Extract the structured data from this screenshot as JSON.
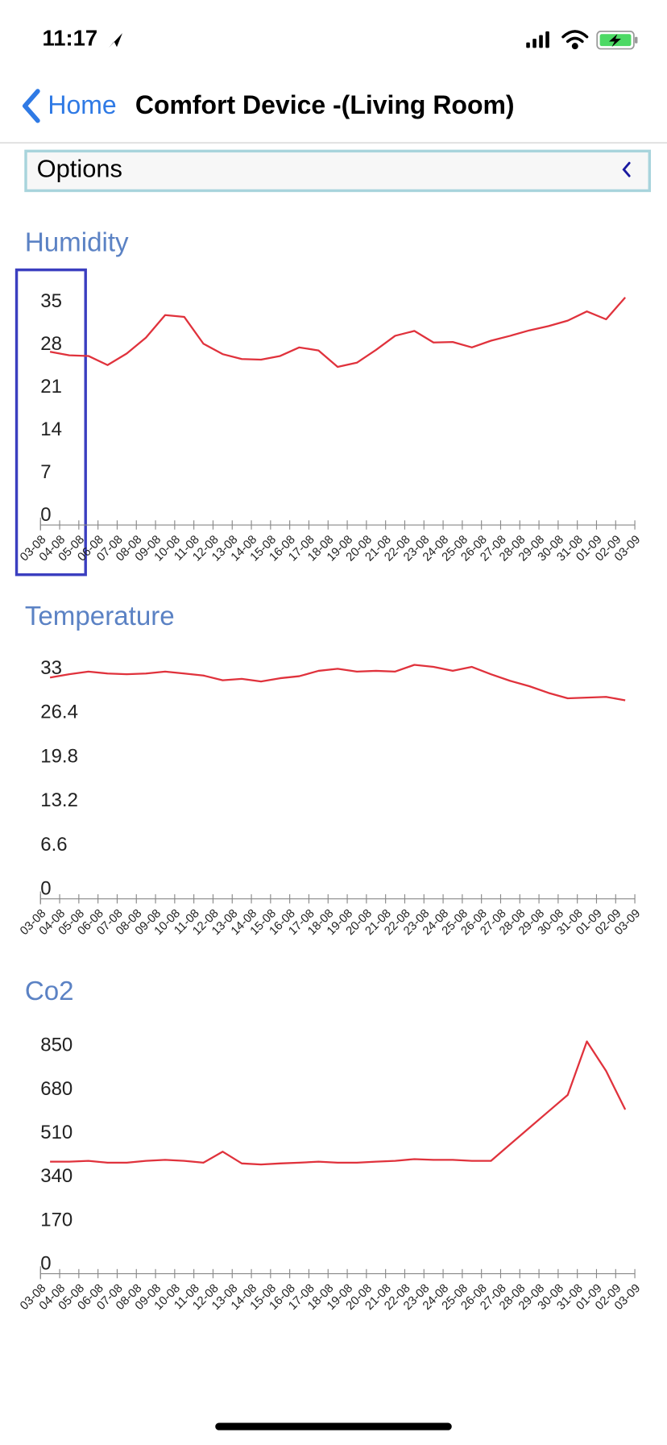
{
  "status_bar": {
    "time": "11:17"
  },
  "nav": {
    "back": "Home",
    "title": "Comfort Device -(Living Room)"
  },
  "options": {
    "label": "Options"
  },
  "chart_data": [
    {
      "type": "line",
      "title": "Humidity",
      "color": "#e0323c",
      "categories": [
        "03-08",
        "04-08",
        "05-08",
        "06-08",
        "07-08",
        "08-08",
        "09-08",
        "10-08",
        "11-08",
        "12-08",
        "13-08",
        "14-08",
        "15-08",
        "16-08",
        "17-08",
        "18-08",
        "19-08",
        "20-08",
        "21-08",
        "22-08",
        "23-08",
        "24-08",
        "25-08",
        "26-08",
        "27-08",
        "28-08",
        "29-08",
        "30-08",
        "31-08",
        "01-09",
        "02-09",
        "03-09"
      ],
      "values": [
        28.4,
        27.8,
        27.7,
        26.2,
        28.1,
        30.7,
        34.4,
        34.1,
        29.7,
        28.0,
        27.2,
        27.1,
        27.7,
        29.1,
        28.6,
        25.9,
        26.6,
        28.7,
        31.0,
        31.8,
        29.9,
        30.0,
        29.1,
        30.2,
        31.0,
        31.9,
        32.6,
        33.5,
        35.0,
        33.7,
        37.3,
        null
      ],
      "ylim": [
        0,
        40
      ],
      "yticks": [
        0,
        7,
        14,
        21,
        28,
        35
      ]
    },
    {
      "type": "line",
      "title": "Temperature",
      "color": "#e0323c",
      "categories": [
        "03-08",
        "04-08",
        "05-08",
        "06-08",
        "07-08",
        "08-08",
        "09-08",
        "10-08",
        "11-08",
        "12-08",
        "13-08",
        "14-08",
        "15-08",
        "16-08",
        "17-08",
        "18-08",
        "19-08",
        "20-08",
        "21-08",
        "22-08",
        "23-08",
        "24-08",
        "25-08",
        "26-08",
        "27-08",
        "28-08",
        "29-08",
        "30-08",
        "31-08",
        "01-09",
        "02-09",
        "03-09"
      ],
      "values": [
        33.1,
        33.6,
        34.0,
        33.7,
        33.6,
        33.7,
        34.0,
        33.7,
        33.4,
        32.7,
        32.9,
        32.5,
        33.0,
        33.3,
        34.1,
        34.4,
        34.0,
        34.1,
        34.0,
        35.0,
        34.7,
        34.1,
        34.7,
        33.6,
        32.6,
        31.8,
        30.8,
        30.0,
        30.1,
        30.2,
        29.7,
        null
      ],
      "ylim": [
        0,
        36.5
      ],
      "yticks": [
        0,
        6.6,
        13.2,
        19.8,
        26.4,
        33
      ]
    },
    {
      "type": "line",
      "title": "Co2",
      "color": "#e0323c",
      "categories": [
        "03-08",
        "04-08",
        "05-08",
        "06-08",
        "07-08",
        "08-08",
        "09-08",
        "10-08",
        "11-08",
        "12-08",
        "13-08",
        "14-08",
        "15-08",
        "16-08",
        "17-08",
        "18-08",
        "19-08",
        "20-08",
        "21-08",
        "22-08",
        "23-08",
        "24-08",
        "25-08",
        "26-08",
        "27-08",
        "28-08",
        "29-08",
        "30-08",
        "31-08",
        "01-09",
        "02-09",
        "03-09"
      ],
      "values": [
        436,
        436,
        439,
        432,
        432,
        439,
        443,
        439,
        432,
        475,
        429,
        425,
        429,
        432,
        436,
        432,
        432,
        436,
        439,
        446,
        443,
        443,
        439,
        439,
        504,
        568,
        632,
        696,
        904,
        789,
        639,
        null
      ],
      "ylim": [
        0,
        950
      ],
      "yticks": [
        0,
        170,
        340,
        510,
        680,
        850
      ]
    }
  ]
}
